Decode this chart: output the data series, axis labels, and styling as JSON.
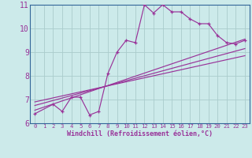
{
  "background_color": "#cceaea",
  "grid_color": "#aacccc",
  "line_color": "#993399",
  "spine_color": "#336699",
  "xlim": [
    -0.5,
    23.5
  ],
  "ylim": [
    6,
    11
  ],
  "xlabel": "Windchill (Refroidissement éolien,°C)",
  "yticks": [
    6,
    7,
    8,
    9,
    10,
    11
  ],
  "xticks": [
    0,
    1,
    2,
    3,
    4,
    5,
    6,
    7,
    8,
    9,
    10,
    11,
    12,
    13,
    14,
    15,
    16,
    17,
    18,
    19,
    20,
    21,
    22,
    23
  ],
  "series1_x": [
    0,
    2,
    3,
    4,
    5,
    6,
    7,
    8,
    9,
    10,
    11,
    12,
    13,
    14,
    15,
    16,
    17,
    18,
    19,
    20,
    21,
    22,
    23
  ],
  "series1_y": [
    6.4,
    6.8,
    6.5,
    7.1,
    7.1,
    6.35,
    6.5,
    8.1,
    9.0,
    9.5,
    9.4,
    11.0,
    10.65,
    11.0,
    10.7,
    10.7,
    10.4,
    10.2,
    10.2,
    9.7,
    9.4,
    9.35,
    9.5
  ],
  "series2_x": [
    0,
    23
  ],
  "series2_y": [
    6.55,
    9.55
  ],
  "series3_x": [
    0,
    23
  ],
  "series3_y": [
    6.75,
    9.15
  ],
  "series4_x": [
    0,
    23
  ],
  "series4_y": [
    6.9,
    8.85
  ],
  "xtick_fontsize": 5.2,
  "ytick_fontsize": 7.0,
  "xlabel_fontsize": 6.0
}
